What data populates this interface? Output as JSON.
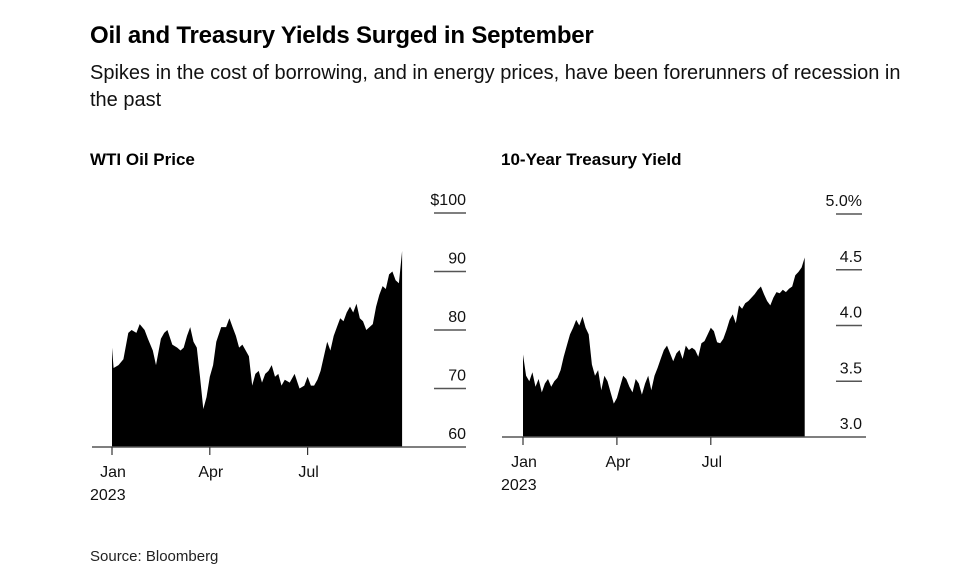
{
  "header": {
    "title": "Oil and Treasury Yields Surged in September",
    "subtitle": "Spikes in the cost of borrowing, and in energy prices, have been forerunners of recession in the past"
  },
  "footer": {
    "source": "Source: Bloomberg"
  },
  "chart_data": [
    {
      "type": "area",
      "title": "WTI Oil Price",
      "xlabel": "",
      "ylabel": "",
      "x_tick_labels": [
        "Jan\n2023",
        "Apr",
        "Jul"
      ],
      "y_tick_labels": [
        "60",
        "70",
        "80",
        "90",
        "$100"
      ],
      "y_ticks": [
        60,
        70,
        80,
        90,
        100
      ],
      "ylim": [
        60,
        100
      ],
      "x_range_months": [
        0,
        8.9
      ],
      "grid": false,
      "fill_color": "#000000",
      "x_month": [
        0,
        0.05,
        0.2,
        0.35,
        0.5,
        0.6,
        0.75,
        0.85,
        1.0,
        1.1,
        1.25,
        1.35,
        1.5,
        1.6,
        1.7,
        1.85,
        2.0,
        2.1,
        2.2,
        2.3,
        2.4,
        2.5,
        2.6,
        2.7,
        2.8,
        2.9,
        3.0,
        3.1,
        3.2,
        3.35,
        3.5,
        3.6,
        3.7,
        3.8,
        3.9,
        4.0,
        4.1,
        4.2,
        4.3,
        4.4,
        4.5,
        4.6,
        4.7,
        4.8,
        4.9,
        5.0,
        5.1,
        5.2,
        5.3,
        5.45,
        5.6,
        5.75,
        5.9,
        6.0,
        6.1,
        6.2,
        6.3,
        6.4,
        6.5,
        6.6,
        6.7,
        6.8,
        6.9,
        7.0,
        7.1,
        7.2,
        7.3,
        7.4,
        7.5,
        7.6,
        7.7,
        7.8,
        7.9,
        8.0,
        8.1,
        8.2,
        8.3,
        8.4,
        8.5,
        8.6,
        8.7,
        8.8,
        8.9
      ],
      "values": [
        77.0,
        73.5,
        74.0,
        75.0,
        79.5,
        80.0,
        79.5,
        81.0,
        80.0,
        78.5,
        76.5,
        74.0,
        78.5,
        79.5,
        80.0,
        77.5,
        77.0,
        76.5,
        77.0,
        79.0,
        80.5,
        78.0,
        77.0,
        72.0,
        66.5,
        68.5,
        72.0,
        74.0,
        78.0,
        80.5,
        80.5,
        82.0,
        80.5,
        79.0,
        77.0,
        77.5,
        76.5,
        75.5,
        70.5,
        72.5,
        73.0,
        71.0,
        72.5,
        73.0,
        74.0,
        72.0,
        72.5,
        70.5,
        71.5,
        71.0,
        72.5,
        70.0,
        70.5,
        72.0,
        70.5,
        70.5,
        71.5,
        73.0,
        75.5,
        78.0,
        76.5,
        79.0,
        80.5,
        82.0,
        81.5,
        83.0,
        84.0,
        83.0,
        84.5,
        82.0,
        81.5,
        80.0,
        80.5,
        81.0,
        84.0,
        86.0,
        87.5,
        87.0,
        89.5,
        90.0,
        88.5,
        88.0,
        93.5
      ]
    },
    {
      "type": "area",
      "title": "10-Year Treasury Yield",
      "xlabel": "",
      "ylabel": "",
      "x_tick_labels": [
        "Jan\n2023",
        "Apr",
        "Jul"
      ],
      "y_tick_labels": [
        "3.0",
        "3.5",
        "4.0",
        "4.5",
        "5.0%"
      ],
      "y_ticks": [
        3.0,
        3.5,
        4.0,
        4.5,
        5.0
      ],
      "ylim": [
        3.0,
        5.0
      ],
      "x_range_months": [
        0,
        9.0
      ],
      "grid": false,
      "fill_color": "#000000",
      "x_month": [
        0,
        0.1,
        0.2,
        0.3,
        0.4,
        0.5,
        0.6,
        0.7,
        0.8,
        0.9,
        1.0,
        1.1,
        1.2,
        1.3,
        1.4,
        1.5,
        1.6,
        1.7,
        1.8,
        1.9,
        2.0,
        2.1,
        2.2,
        2.3,
        2.4,
        2.5,
        2.6,
        2.7,
        2.8,
        2.9,
        3.0,
        3.1,
        3.2,
        3.3,
        3.4,
        3.5,
        3.6,
        3.7,
        3.8,
        3.9,
        4.0,
        4.1,
        4.2,
        4.3,
        4.4,
        4.5,
        4.6,
        4.7,
        4.8,
        4.9,
        5.0,
        5.1,
        5.2,
        5.3,
        5.4,
        5.5,
        5.6,
        5.7,
        5.8,
        5.9,
        6.0,
        6.1,
        6.2,
        6.3,
        6.4,
        6.5,
        6.6,
        6.7,
        6.8,
        6.9,
        7.0,
        7.1,
        7.2,
        7.3,
        7.4,
        7.5,
        7.6,
        7.7,
        7.8,
        7.9,
        8.0,
        8.1,
        8.2,
        8.3,
        8.4,
        8.5,
        8.6,
        8.7,
        8.8,
        8.9,
        9.0
      ],
      "values": [
        3.74,
        3.55,
        3.5,
        3.58,
        3.45,
        3.52,
        3.4,
        3.48,
        3.52,
        3.45,
        3.5,
        3.53,
        3.6,
        3.72,
        3.82,
        3.92,
        3.98,
        4.05,
        4.0,
        4.08,
        3.98,
        3.92,
        3.65,
        3.55,
        3.6,
        3.42,
        3.55,
        3.5,
        3.4,
        3.3,
        3.35,
        3.45,
        3.55,
        3.52,
        3.45,
        3.4,
        3.52,
        3.48,
        3.38,
        3.48,
        3.55,
        3.42,
        3.55,
        3.62,
        3.7,
        3.78,
        3.82,
        3.75,
        3.68,
        3.75,
        3.78,
        3.7,
        3.82,
        3.78,
        3.8,
        3.78,
        3.72,
        3.84,
        3.86,
        3.92,
        3.98,
        3.95,
        3.85,
        3.84,
        3.88,
        3.96,
        4.05,
        4.1,
        4.02,
        4.18,
        4.15,
        4.2,
        4.22,
        4.25,
        4.28,
        4.32,
        4.35,
        4.28,
        4.22,
        4.18,
        4.25,
        4.3,
        4.29,
        4.32,
        4.3,
        4.33,
        4.35,
        4.45,
        4.48,
        4.52,
        4.61
      ]
    }
  ]
}
